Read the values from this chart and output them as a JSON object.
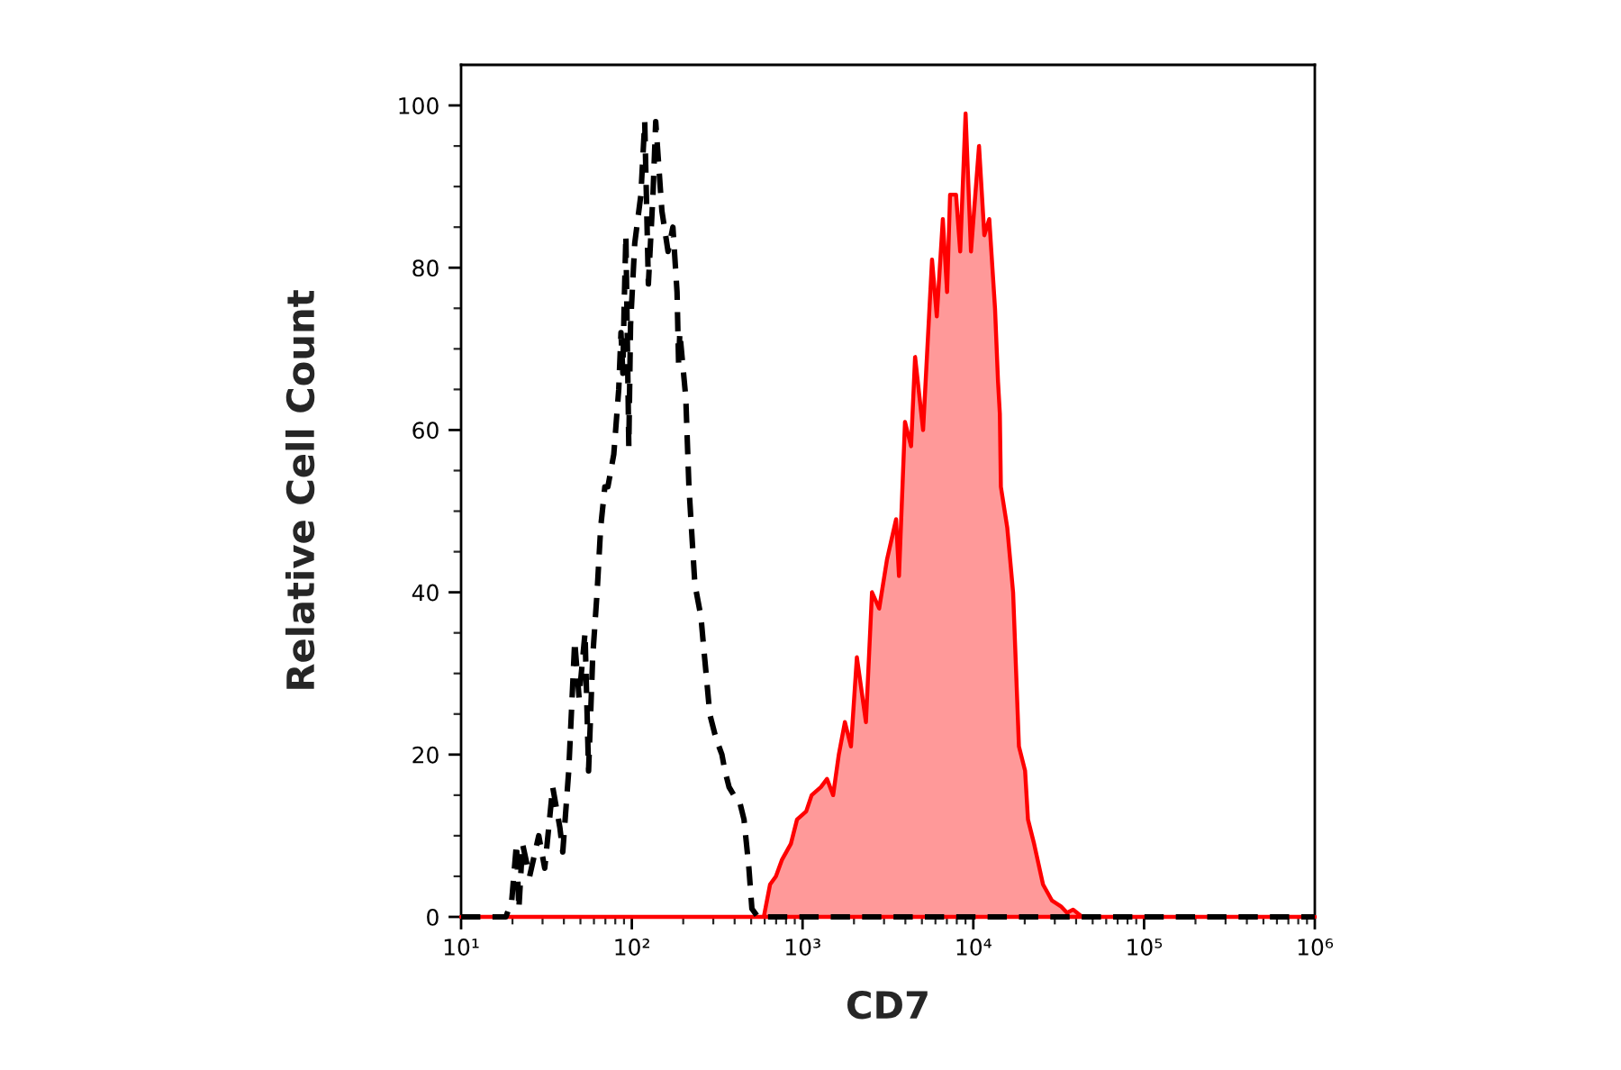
{
  "chart_data": {
    "type": "area",
    "xlabel": "CD7",
    "ylabel": "Relative Cell Count",
    "log": "x",
    "xlim": [
      10,
      1000000
    ],
    "ylim": [
      0,
      105
    ],
    "xticks": [
      {
        "value": 10,
        "label": "10¹"
      },
      {
        "value": 20,
        "label": null
      },
      {
        "value": 30,
        "label": null
      },
      {
        "value": 40,
        "label": null
      },
      {
        "value": 50,
        "label": null
      },
      {
        "value": 60,
        "label": null
      },
      {
        "value": 70,
        "label": null
      },
      {
        "value": 80,
        "label": null
      },
      {
        "value": 90,
        "label": null
      },
      {
        "value": 100,
        "label": "10²"
      },
      {
        "value": 200,
        "label": null
      },
      {
        "value": 300,
        "label": null
      },
      {
        "value": 400,
        "label": null
      },
      {
        "value": 500,
        "label": null
      },
      {
        "value": 600,
        "label": null
      },
      {
        "value": 700,
        "label": null
      },
      {
        "value": 800,
        "label": null
      },
      {
        "value": 900,
        "label": null
      },
      {
        "value": 1000,
        "label": "10³"
      },
      {
        "value": 2000,
        "label": null
      },
      {
        "value": 3000,
        "label": null
      },
      {
        "value": 4000,
        "label": null
      },
      {
        "value": 5000,
        "label": null
      },
      {
        "value": 6000,
        "label": null
      },
      {
        "value": 7000,
        "label": null
      },
      {
        "value": 8000,
        "label": null
      },
      {
        "value": 9000,
        "label": null
      },
      {
        "value": 10000,
        "label": "10⁴"
      },
      {
        "value": 20000,
        "label": null
      },
      {
        "value": 30000,
        "label": null
      },
      {
        "value": 40000,
        "label": null
      },
      {
        "value": 50000,
        "label": null
      },
      {
        "value": 60000,
        "label": null
      },
      {
        "value": 70000,
        "label": null
      },
      {
        "value": 80000,
        "label": null
      },
      {
        "value": 90000,
        "label": null
      },
      {
        "value": 100000,
        "label": "10⁵"
      },
      {
        "value": 200000,
        "label": null
      },
      {
        "value": 300000,
        "label": null
      },
      {
        "value": 400000,
        "label": null
      },
      {
        "value": 500000,
        "label": null
      },
      {
        "value": 600000,
        "label": null
      },
      {
        "value": 700000,
        "label": null
      },
      {
        "value": 800000,
        "label": null
      },
      {
        "value": 900000,
        "label": null
      },
      {
        "value": 1000000,
        "label": "10⁶"
      }
    ],
    "yticks": [
      0,
      {
        "value": 5,
        "label": null
      },
      {
        "value": 10,
        "label": null
      },
      {
        "value": 15,
        "label": null
      },
      20,
      {
        "value": 25,
        "label": null
      },
      {
        "value": 30,
        "label": null
      },
      {
        "value": 35,
        "label": null
      },
      40,
      {
        "value": 45,
        "label": null
      },
      {
        "value": 50,
        "label": null
      },
      {
        "value": 55,
        "label": null
      },
      60,
      {
        "value": 65,
        "label": null
      },
      {
        "value": 70,
        "label": null
      },
      {
        "value": 75,
        "label": null
      },
      80,
      {
        "value": 85,
        "label": null
      },
      {
        "value": 90,
        "label": null
      },
      {
        "value": 95,
        "label": null
      },
      100
    ],
    "series": [
      {
        "color": "#ff0000",
        "x": [
          10,
          593,
          645,
          698,
          756,
          854,
          928,
          1050,
          1130,
          1280,
          1390,
          1510,
          1630,
          1770,
          1920,
          2080,
          2350,
          2550,
          2810,
          3120,
          3530,
          3670,
          3980,
          4320,
          4560,
          5080,
          5730,
          6110,
          6630,
          7020,
          7310,
          7920,
          8380,
          9010,
          9690,
          10800,
          11600,
          12400,
          13400,
          13950,
          14300,
          14500,
          15800,
          17100,
          18500,
          20100,
          20900,
          22700,
          25600,
          28900,
          32600,
          35400,
          38400,
          43400,
          1000000
        ],
        "values": [
          0,
          0,
          4,
          5,
          7,
          9,
          12,
          13,
          15,
          16,
          17,
          15,
          20,
          24,
          21,
          32,
          24,
          40,
          38,
          44,
          49,
          42,
          61,
          58,
          69,
          60,
          81,
          74,
          86,
          77,
          89,
          89,
          82,
          99,
          82,
          95,
          84,
          86,
          75,
          66,
          62,
          53,
          48,
          40,
          21,
          18,
          12,
          9,
          4,
          2,
          1.3,
          0.5,
          0.9,
          0,
          0
        ]
      },
      {
        "type": "line",
        "color": "#000000",
        "line_style": "dashed",
        "x": [
          10,
          18.3,
          19.8,
          21.1,
          21.8,
          22.9,
          25.2,
          28.5,
          30.9,
          34.4,
          37.9,
          39.4,
          42.7,
          46.3,
          49.1,
          53.2,
          55.8,
          59.0,
          62.6,
          65.7,
          69.5,
          72.4,
          78.4,
          83.8,
          86.4,
          88.6,
          90.1,
          92.3,
          96.0,
          98.3,
          104,
          113,
          119,
          125,
          133,
          138,
          150,
          163,
          174,
          184,
          188,
          191,
          207,
          216,
          234,
          254,
          264,
          275,
          286,
          311,
          337,
          351,
          371,
          396,
          430,
          454,
          485,
          505,
          547,
          1000000
        ],
        "values": [
          0,
          0,
          2,
          9,
          1,
          9,
          5,
          10,
          6,
          16,
          11,
          8,
          18,
          34,
          27,
          35,
          18,
          32,
          40,
          48,
          53,
          53,
          57,
          65,
          72,
          67,
          75,
          84,
          58,
          73,
          83,
          89,
          98,
          78,
          89,
          98,
          87,
          82,
          85,
          77,
          68,
          72,
          64,
          53,
          41,
          37,
          33,
          29,
          25,
          22,
          20,
          18,
          16,
          15,
          14,
          12,
          6,
          1,
          0,
          0
        ]
      }
    ]
  }
}
